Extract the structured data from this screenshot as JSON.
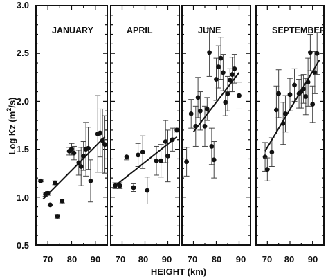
{
  "chart_data": {
    "type": "scatter",
    "ylabel_parts": {
      "base": "Log  Kz (m",
      "exponent": "2",
      "tail": "/s)"
    },
    "xlabel": "HEIGHT (km)",
    "ylim": [
      0.5,
      3.0
    ],
    "xlim": [
      65,
      95
    ],
    "yticks": [
      "0.5",
      "1.0",
      "1.5",
      "2.0",
      "2.5",
      "3.0"
    ],
    "xticks": [
      "70",
      "80",
      "90"
    ],
    "grid": false,
    "panels": [
      {
        "title": "JANUARY",
        "points": [
          {
            "x": 67,
            "y": 1.17,
            "err": 0.01
          },
          {
            "x": 69,
            "y": 1.03,
            "err": 0.02
          },
          {
            "x": 70,
            "y": 1.04,
            "err": 0.02
          },
          {
            "x": 71,
            "y": 0.92,
            "err": 0.01
          },
          {
            "x": 73,
            "y": 1.15,
            "err": 0.02
          },
          {
            "x": 74,
            "y": 0.8,
            "err": 0.02
          },
          {
            "x": 76,
            "y": 0.96,
            "err": 0.02
          },
          {
            "x": 79,
            "y": 1.48,
            "err": 0.04
          },
          {
            "x": 80,
            "y": 1.5,
            "err": 0.06
          },
          {
            "x": 81,
            "y": 1.46,
            "err": 0.07
          },
          {
            "x": 83,
            "y": 1.36,
            "err": 0.13
          },
          {
            "x": 84,
            "y": 1.32,
            "err": 0.2
          },
          {
            "x": 85,
            "y": 1.43,
            "err": 0.15
          },
          {
            "x": 86,
            "y": 1.5,
            "err": 0.28
          },
          {
            "x": 87,
            "y": 1.51,
            "err": 0.22
          },
          {
            "x": 88,
            "y": 1.17,
            "err": 0.22
          },
          {
            "x": 91,
            "y": 1.66,
            "err": 0.4
          },
          {
            "x": 92,
            "y": 1.67,
            "err": 0.25
          },
          {
            "x": 93,
            "y": 1.59,
            "err": 0.33
          },
          {
            "x": 94,
            "y": 1.55,
            "err": 0.3
          }
        ],
        "fit": {
          "x": [
            68,
            94
          ],
          "y": [
            0.98,
            1.63
          ]
        }
      },
      {
        "title": "APRIL",
        "points": [
          {
            "x": 67,
            "y": 1.12,
            "err": 0.03
          },
          {
            "x": 69,
            "y": 1.12,
            "err": 0.03
          },
          {
            "x": 72,
            "y": 1.42,
            "err": 0.03
          },
          {
            "x": 75,
            "y": 1.1,
            "err": 0.04
          },
          {
            "x": 77,
            "y": 1.44,
            "err": 0.12
          },
          {
            "x": 79,
            "y": 1.47,
            "err": 0.17
          },
          {
            "x": 81,
            "y": 1.07,
            "err": 0.14
          },
          {
            "x": 85,
            "y": 1.38,
            "err": 0.15
          },
          {
            "x": 87,
            "y": 1.38,
            "err": 0.17
          },
          {
            "x": 89,
            "y": 1.58,
            "err": 0.22
          },
          {
            "x": 90,
            "y": 1.43,
            "err": 0.27
          },
          {
            "x": 92,
            "y": 1.6,
            "err": 0.12
          },
          {
            "x": 94,
            "y": 1.7,
            "err": 0.02
          }
        ],
        "fit": {
          "x": [
            67,
            94
          ],
          "y": [
            1.12,
            1.63
          ]
        }
      },
      {
        "title": "JUNE",
        "points": [
          {
            "x": 67,
            "y": 1.37,
            "err": 0.15
          },
          {
            "x": 69,
            "y": 1.87,
            "err": 0.15
          },
          {
            "x": 71,
            "y": 1.74,
            "err": 0.21
          },
          {
            "x": 72,
            "y": 2.04,
            "err": 0.21
          },
          {
            "x": 73,
            "y": 1.9,
            "err": 0.2
          },
          {
            "x": 75,
            "y": 1.74,
            "err": 0.21
          },
          {
            "x": 76,
            "y": 1.92,
            "err": 0.12
          },
          {
            "x": 77,
            "y": 2.51,
            "err": 0.25
          },
          {
            "x": 78,
            "y": 1.53,
            "err": 0.19
          },
          {
            "x": 79,
            "y": 1.39,
            "err": 0.19
          },
          {
            "x": 80,
            "y": 2.23,
            "err": 0.22
          },
          {
            "x": 81,
            "y": 2.36,
            "err": 0.22
          },
          {
            "x": 82,
            "y": 2.45,
            "err": 0.22
          },
          {
            "x": 83,
            "y": 2.3,
            "err": 0.19
          },
          {
            "x": 84,
            "y": 1.99,
            "err": 0.14
          },
          {
            "x": 85,
            "y": 2.08,
            "err": 0.18
          },
          {
            "x": 86,
            "y": 2.22,
            "err": 0.12
          },
          {
            "x": 87,
            "y": 2.28,
            "err": 0.18
          },
          {
            "x": 88,
            "y": 2.34,
            "err": 0.15
          },
          {
            "x": 90,
            "y": 2.06,
            "err": 0.14
          }
        ],
        "fit": {
          "x": [
            70,
            90
          ],
          "y": [
            1.68,
            2.3
          ]
        }
      },
      {
        "title": "SEPTEMBER",
        "points": [
          {
            "x": 69,
            "y": 1.42,
            "err": 0.15
          },
          {
            "x": 70,
            "y": 1.29,
            "err": 0.12
          },
          {
            "x": 72,
            "y": 1.47,
            "err": 0.15
          },
          {
            "x": 74,
            "y": 1.91,
            "err": 0.25
          },
          {
            "x": 75,
            "y": 2.08,
            "err": 0.25
          },
          {
            "x": 77,
            "y": 1.77,
            "err": 0.22
          },
          {
            "x": 78,
            "y": 1.87,
            "err": 0.19
          },
          {
            "x": 80,
            "y": 2.07,
            "err": 0.17
          },
          {
            "x": 82,
            "y": 2.17,
            "err": 0.17
          },
          {
            "x": 84,
            "y": 2.08,
            "err": 0.15
          },
          {
            "x": 85,
            "y": 2.1,
            "err": 0.17
          },
          {
            "x": 86,
            "y": 2.13,
            "err": 0.15
          },
          {
            "x": 87,
            "y": 2.05,
            "err": 0.19
          },
          {
            "x": 88,
            "y": 2.2,
            "err": 0.25
          },
          {
            "x": 89,
            "y": 2.51,
            "err": 0.19
          },
          {
            "x": 90,
            "y": 1.97,
            "err": 0.19
          },
          {
            "x": 91,
            "y": 2.3,
            "err": 0.22
          },
          {
            "x": 92,
            "y": 2.5,
            "err": 0.22
          }
        ],
        "fit": {
          "x": [
            69,
            93
          ],
          "y": [
            1.48,
            2.43
          ]
        }
      }
    ]
  }
}
